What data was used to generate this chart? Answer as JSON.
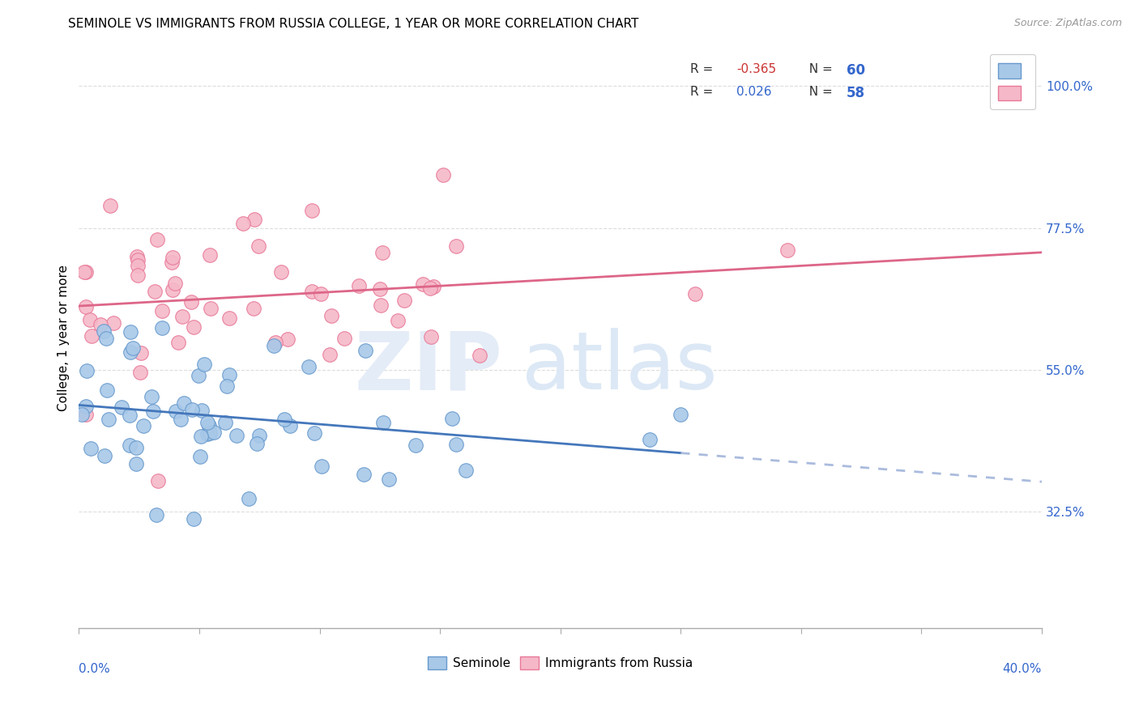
{
  "title": "SEMINOLE VS IMMIGRANTS FROM RUSSIA COLLEGE, 1 YEAR OR MORE CORRELATION CHART",
  "source": "Source: ZipAtlas.com",
  "ylabel": "College, 1 year or more",
  "ylabel_right_ticks": [
    "100.0%",
    "77.5%",
    "55.0%",
    "32.5%"
  ],
  "ylabel_right_vals": [
    1.0,
    0.775,
    0.55,
    0.325
  ],
  "xmin": 0.0,
  "xmax": 0.4,
  "ymin": 0.14,
  "ymax": 1.06,
  "blue_color": "#a8c8e8",
  "blue_edge_color": "#6699cc",
  "pink_color": "#f5b8c8",
  "pink_edge_color": "#e87898",
  "blue_line_color": "#4477bb",
  "blue_dash_color": "#aabbdd",
  "pink_line_color": "#dd6688",
  "grid_color": "#dddddd",
  "seminole_r": -0.365,
  "seminole_n": 60,
  "russia_r": 0.026,
  "russia_n": 58
}
